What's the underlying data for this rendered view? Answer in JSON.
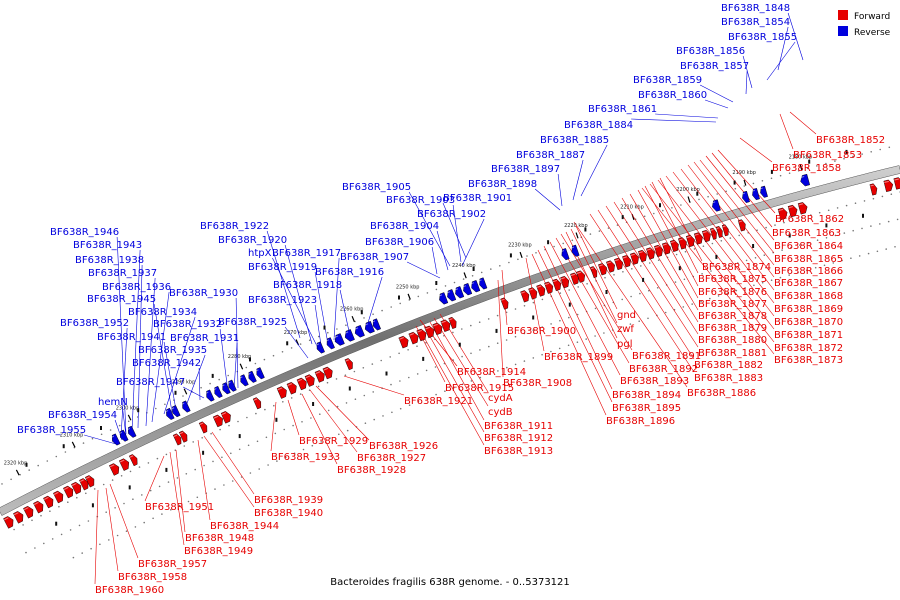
{
  "caption": "Bacteroides fragilis 638R genome. - 0..5373121",
  "legend": {
    "forward": "Forward",
    "reverse": "Reverse",
    "forward_color": "#e60000",
    "reverse_color": "#0000dd"
  },
  "ticks": [
    "2180 kbp",
    "2190 kbp",
    "2200 kbp",
    "2210 kbp",
    "2220 kbp",
    "2230 kbp",
    "2240 kbp",
    "2250 kbp",
    "2260 kbp",
    "2270 kbp",
    "2280 kbp",
    "2290 kbp",
    "2300 kbp",
    "2310 kbp",
    "2320 kbp"
  ],
  "reverse_labels": [
    "BF638R_1848",
    "BF638R_1854",
    "BF638R_1855",
    "BF638R_1856",
    "BF638R_1857",
    "BF638R_1859",
    "BF638R_1860",
    "BF638R_1861",
    "BF638R_1884",
    "BF638R_1885",
    "BF638R_1887",
    "BF638R_1897",
    "BF638R_1898",
    "BF638R_1905",
    "BF638R_1903",
    "BF638R_1901",
    "BF638R_1902",
    "BF638R_1904",
    "BF638R_1906",
    "BF638R_1907",
    "BF638R_1922",
    "BF638R_1920",
    "htpX",
    "BF638R_1917",
    "BF638R_1919",
    "BF638R_1916",
    "BF638R_1918",
    "BF638R_1923",
    "BF638R_1925",
    "BF638R_1946",
    "BF638R_1943",
    "BF638R_1938",
    "BF638R_1937",
    "BF638R_1936",
    "BF638R_1930",
    "BF638R_1945",
    "BF638R_1934",
    "BF638R_1952",
    "BF638R_1932",
    "BF638R_1941",
    "BF638R_1931",
    "BF638R_1935",
    "BF638R_1942",
    "BF638R_1947",
    "hemN",
    "BF638R_1954",
    "BF638R_1955"
  ],
  "forward_labels": [
    "BF638R_1852",
    "BF638R_1853",
    "BF638R_1858",
    "BF638R_1862",
    "BF638R_1863",
    "BF638R_1864",
    "BF638R_1865",
    "BF638R_1874",
    "BF638R_1866",
    "BF638R_1875",
    "BF638R_1867",
    "BF638R_1876",
    "BF638R_1868",
    "BF638R_1877",
    "BF638R_1869",
    "BF638R_1878",
    "BF638R_1870",
    "BF638R_1879",
    "BF638R_1871",
    "BF638R_1880",
    "BF638R_1872",
    "BF638R_1881",
    "BF638R_1873",
    "BF638R_1882",
    "BF638R_1883",
    "BF638R_1886",
    "gnd",
    "zwf",
    "pgl",
    "BF638R_1891",
    "BF638R_1892",
    "BF638R_1893",
    "BF638R_1894",
    "BF638R_1895",
    "BF638R_1896",
    "BF638R_1899",
    "BF638R_1900",
    "BF638R_1908",
    "BF638R_1914",
    "BF638R_1915",
    "cydA",
    "cydB",
    "BF638R_1911",
    "BF638R_1912",
    "BF638R_1913",
    "BF638R_1921",
    "BF638R_1926",
    "BF638R_1927",
    "BF638R_1928",
    "BF638R_1929",
    "BF638R_1933",
    "BF638R_1939",
    "BF638R_1940",
    "BF638R_1944",
    "BF638R_1948",
    "BF638R_1949",
    "BF638R_1951",
    "BF638R_1957",
    "BF638R_1958",
    "BF638R_1960"
  ]
}
